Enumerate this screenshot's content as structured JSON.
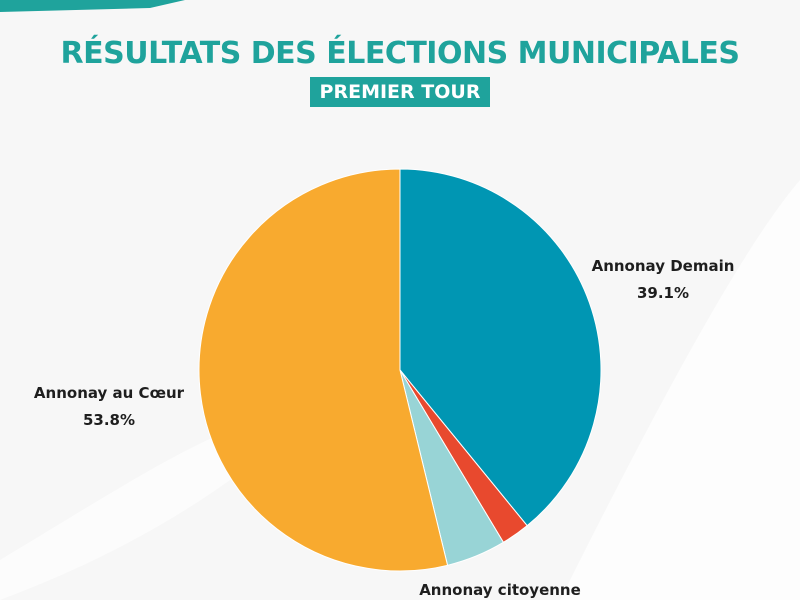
{
  "colors": {
    "accent": "#1fa39c",
    "page_bg": "#f7f7f7",
    "label_text": "#1e1e1e"
  },
  "chart_data": {
    "type": "pie",
    "title": "RÉSULTATS DES ÉLECTIONS MUNICIPALES",
    "subtitle": "PREMIER TOUR",
    "slices": [
      {
        "name": "Annonay Demain",
        "value": 39.1,
        "value_label": "39.1%",
        "color": "#0096b3"
      },
      {
        "name": "",
        "value": 2.3,
        "value_label": "",
        "color": "#e8492e"
      },
      {
        "name": "Annonay citoyenne",
        "value": 4.8,
        "value_label": "",
        "color": "#98d4d6"
      },
      {
        "name": "Annonay au Cœur",
        "value": 53.8,
        "value_label": "53.8%",
        "color": "#f8aa2f"
      }
    ]
  }
}
